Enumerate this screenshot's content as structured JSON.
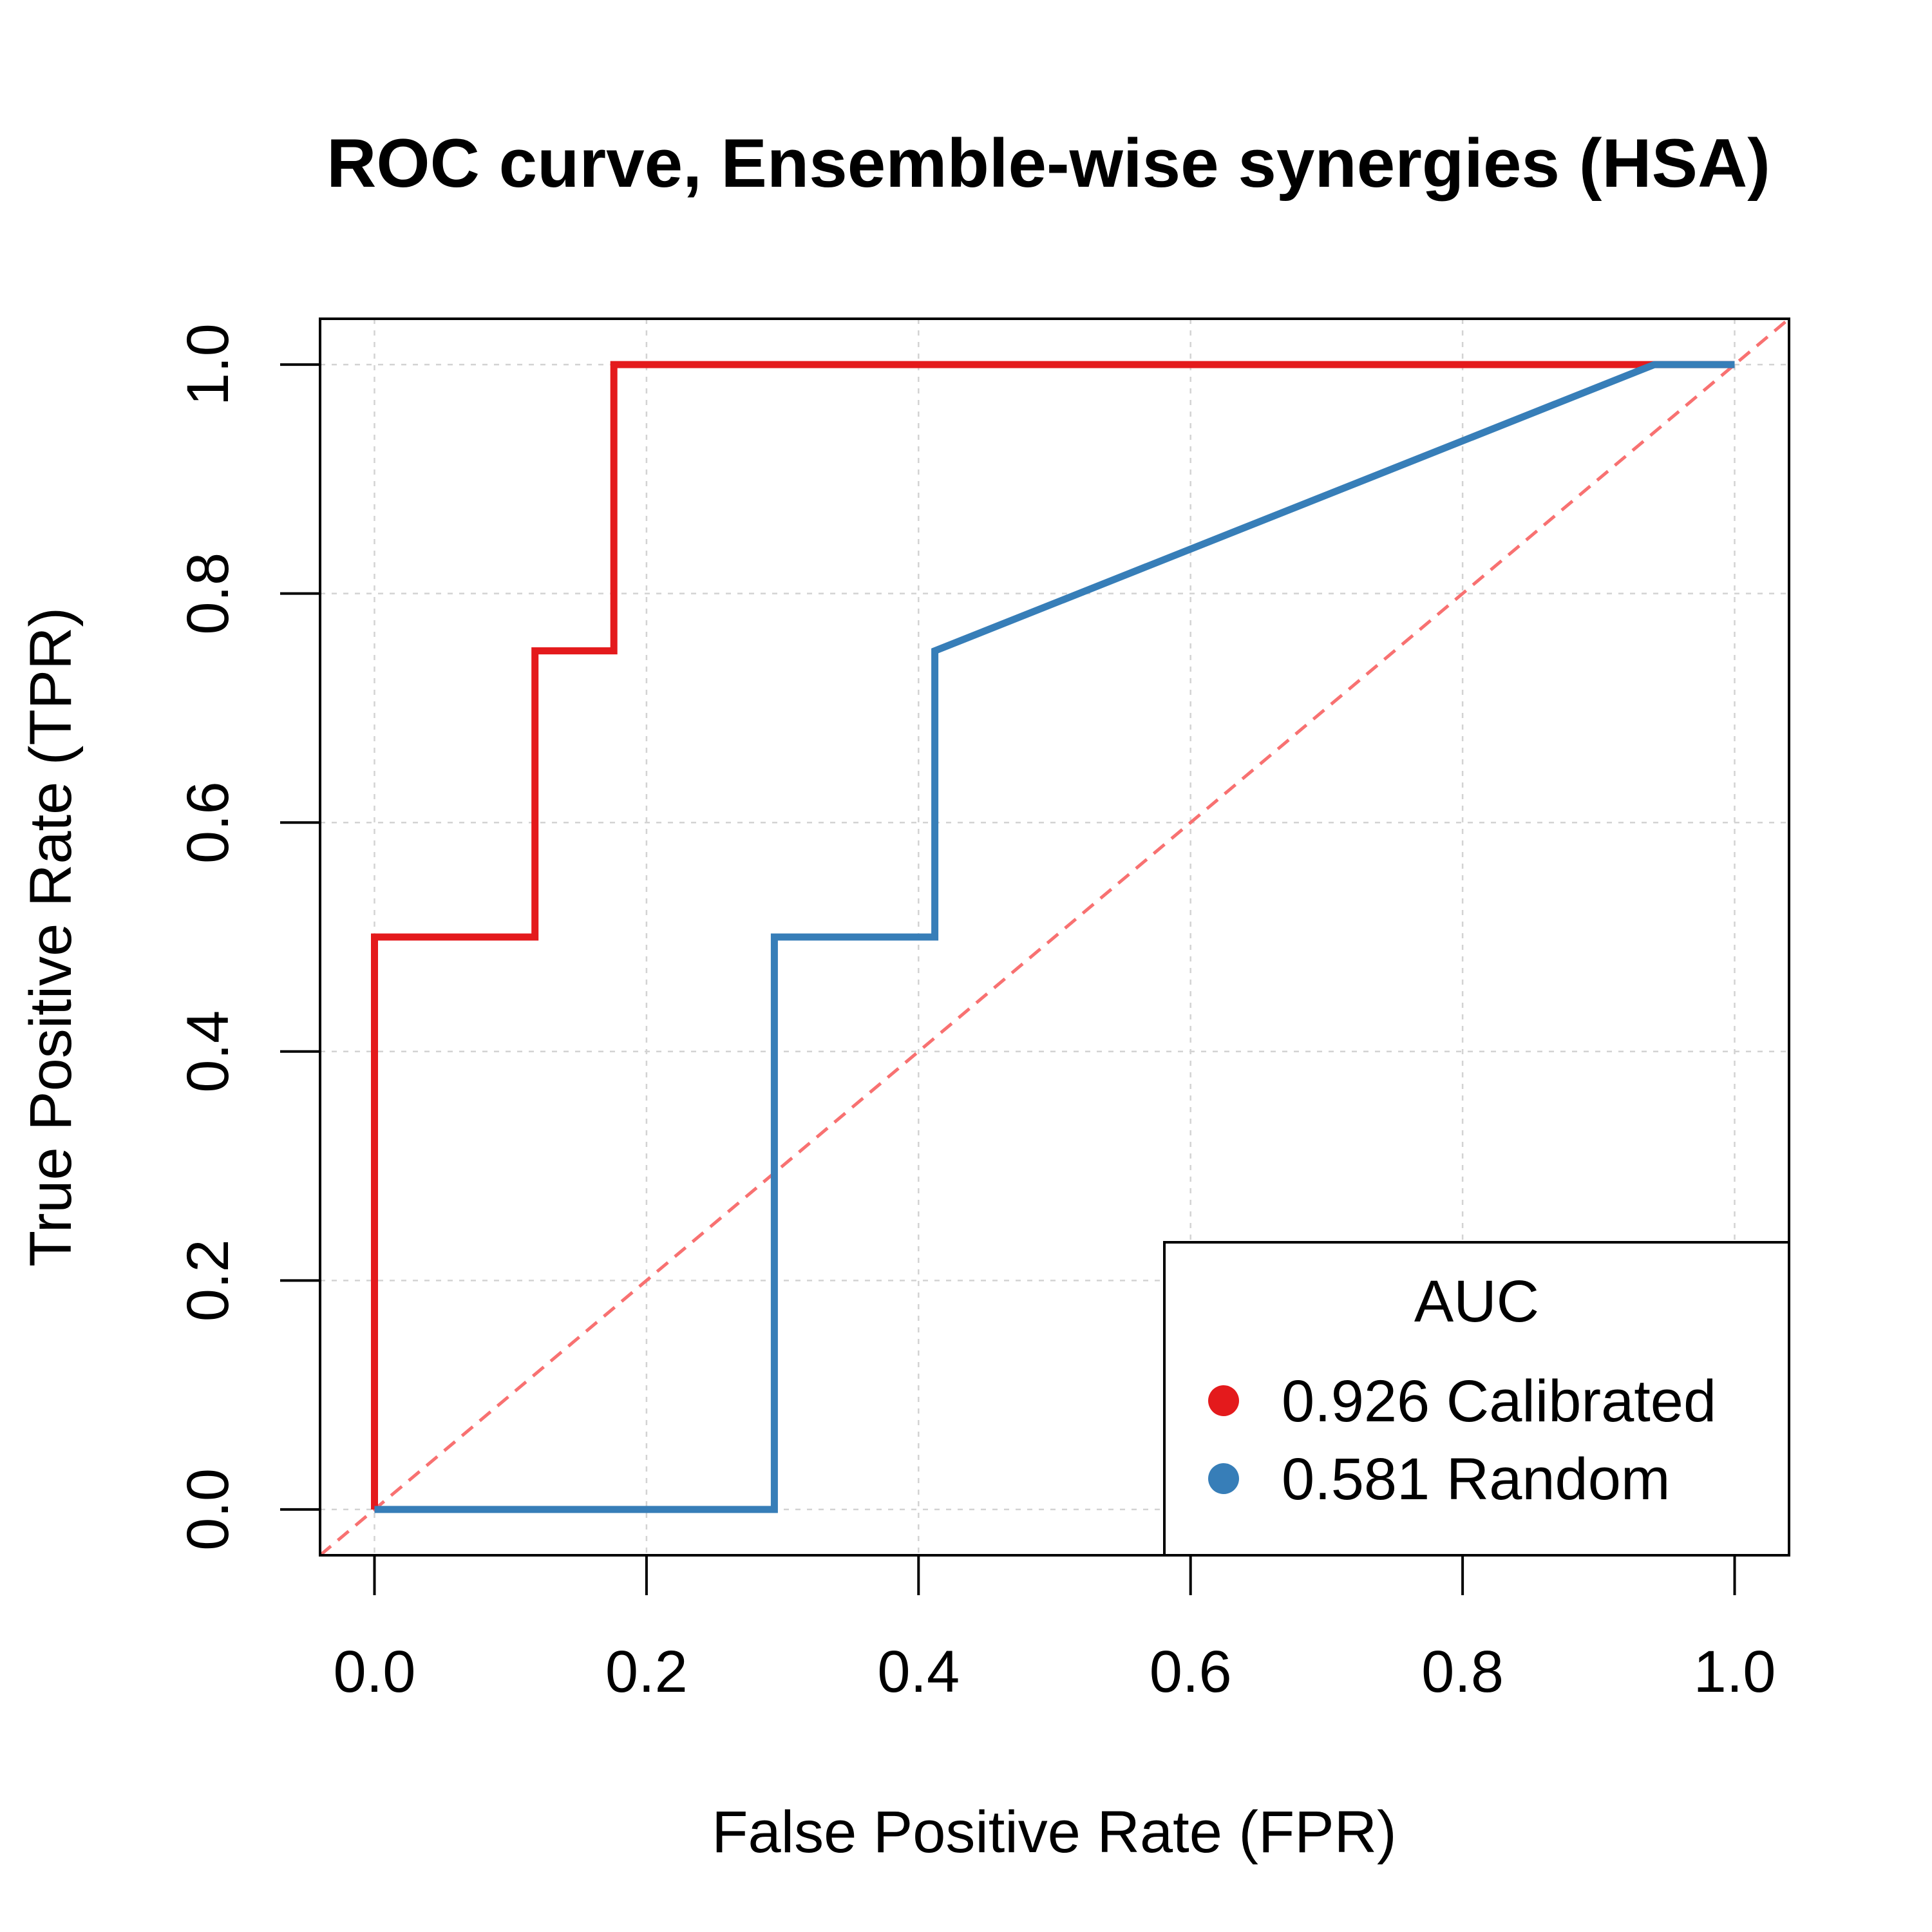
{
  "chart_data": {
    "type": "line",
    "title": "ROC curve, Ensemble-wise synergies (HSA)",
    "xlabel": "False Positive Rate (FPR)",
    "ylabel": "True Positive Rate (TPR)",
    "xlim": [
      0,
      1
    ],
    "ylim": [
      0,
      1
    ],
    "x_ticks": [
      "0.0",
      "0.2",
      "0.4",
      "0.6",
      "0.8",
      "1.0"
    ],
    "y_ticks": [
      "0.0",
      "0.2",
      "0.4",
      "0.6",
      "0.8",
      "1.0"
    ],
    "grid": true,
    "series": [
      {
        "name": "0.926 Calibrated",
        "color": "#E41A1C",
        "x": [
          0,
          0,
          0.118,
          0.118,
          0.176,
          0.176,
          1.0
        ],
        "y": [
          0,
          0.5,
          0.5,
          0.75,
          0.75,
          1.0,
          1.0
        ]
      },
      {
        "name": "0.581 Random",
        "color": "#377EB8",
        "x": [
          0,
          0.294,
          0.294,
          0.412,
          0.412,
          0.941,
          1.0
        ],
        "y": [
          0,
          0,
          0.5,
          0.5,
          0.75,
          1.0,
          1.0
        ]
      }
    ],
    "reference_line": {
      "style": "dashed",
      "color": "#F87171",
      "x": [
        -0.04,
        1.04
      ],
      "y": [
        -0.04,
        1.04
      ]
    },
    "legend": {
      "title": "AUC",
      "position": "bottom-right",
      "entries": [
        "0.926 Calibrated",
        "0.581 Random"
      ]
    }
  }
}
